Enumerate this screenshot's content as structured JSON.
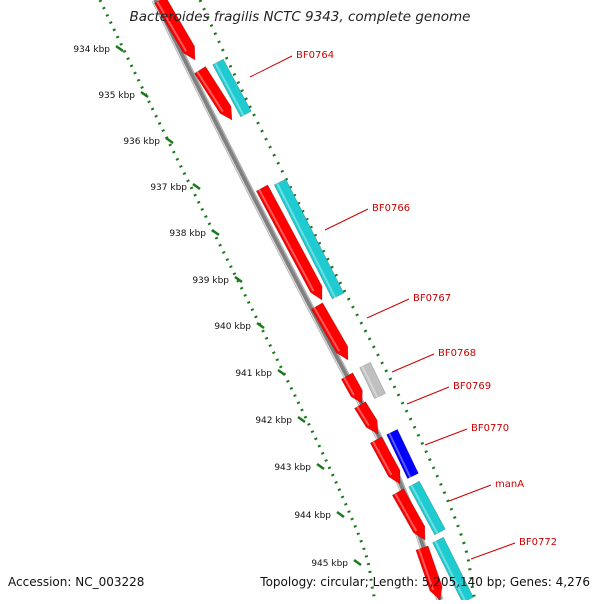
{
  "title": "Bacteroides fragilis NCTC 9343, complete genome",
  "footer": {
    "accession_label": "Accession:",
    "accession": "NC_003228",
    "topology_label": "Topology:",
    "topology": "circular;",
    "length_label": "Length:",
    "length": "5,205,140 bp;",
    "genes_label": "Genes:",
    "genes": "4,276"
  },
  "colors": {
    "forward_cds": "#ff0000",
    "reverse_cds": "#1ecbd0",
    "other_feature": "#c0c0c0",
    "highlight_feature": "#0000ff",
    "gene_label": "#cc0000",
    "backbone": "#808080",
    "ticks": "#1a7a1a"
  },
  "axis": {
    "unit": "kbp",
    "ticks": [
      {
        "label": "934 kbp",
        "kbp": 934
      },
      {
        "label": "935 kbp",
        "kbp": 935
      },
      {
        "label": "936 kbp",
        "kbp": 936
      },
      {
        "label": "937 kbp",
        "kbp": 937
      },
      {
        "label": "938 kbp",
        "kbp": 938
      },
      {
        "label": "939 kbp",
        "kbp": 939
      },
      {
        "label": "940 kbp",
        "kbp": 940
      },
      {
        "label": "941 kbp",
        "kbp": 941
      },
      {
        "label": "942 kbp",
        "kbp": 942
      },
      {
        "label": "943 kbp",
        "kbp": 943
      },
      {
        "label": "944 kbp",
        "kbp": 944
      },
      {
        "label": "945 kbp",
        "kbp": 945
      }
    ]
  },
  "genes": [
    {
      "label": "BF0764"
    },
    {
      "label": "BF0766"
    },
    {
      "label": "BF0767"
    },
    {
      "label": "BF0768"
    },
    {
      "label": "BF0769"
    },
    {
      "label": "BF0770"
    },
    {
      "label": "manA"
    },
    {
      "label": "BF0772"
    }
  ]
}
